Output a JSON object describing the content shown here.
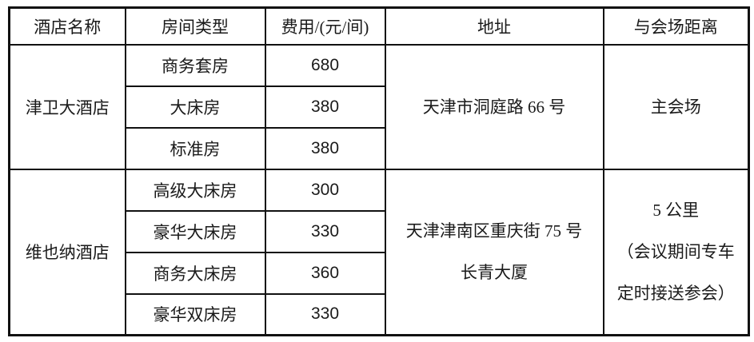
{
  "table": {
    "headers": [
      "酒店名称",
      "房间类型",
      "费用/(元/间)",
      "地址",
      "与会场距离"
    ],
    "hotels": [
      {
        "name": "津卫大酒店",
        "address_lines": [
          "天津市洞庭路 66 号"
        ],
        "distance_lines": [
          "主会场"
        ],
        "rooms": [
          {
            "type": "商务套房",
            "price": "680"
          },
          {
            "type": "大床房",
            "price": "380"
          },
          {
            "type": "标准房",
            "price": "380"
          }
        ]
      },
      {
        "name": "维也纳酒店",
        "address_lines": [
          "天津津南区重庆街 75 号",
          "长青大厦"
        ],
        "distance_lines": [
          "5 公里",
          "（会议期间专车",
          "定时接送参会）"
        ],
        "rooms": [
          {
            "type": "高级大床房",
            "price": "300"
          },
          {
            "type": "豪华大床房",
            "price": "330"
          },
          {
            "type": "商务大床房",
            "price": "360"
          },
          {
            "type": "豪华双床房",
            "price": "330"
          }
        ]
      }
    ]
  }
}
